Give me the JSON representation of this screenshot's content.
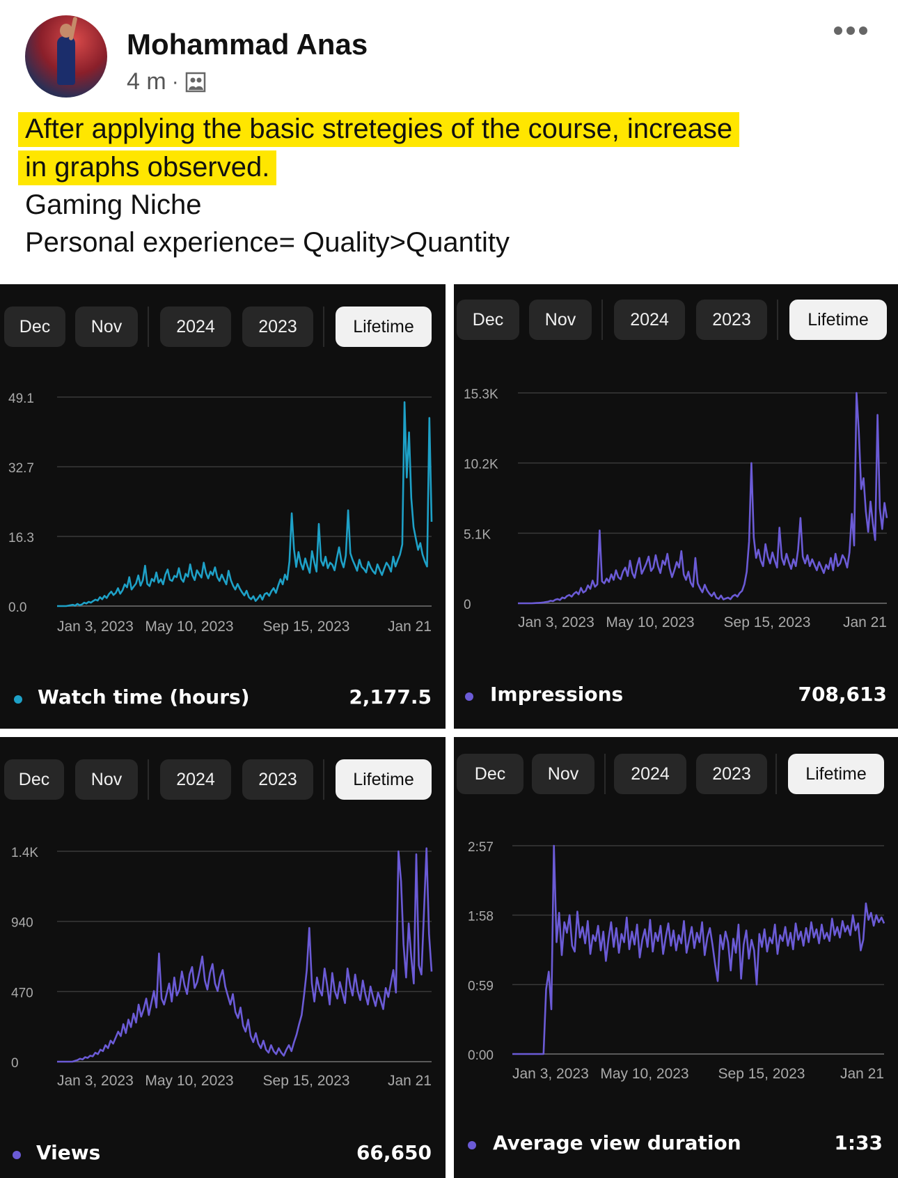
{
  "post": {
    "author": "Mohammad Anas",
    "time": "4 m",
    "meta_separator": "·",
    "audience_icon": "album-icon",
    "more_icon": "more-options-icon",
    "highlighted_lines": [
      "After applying the basic stretegies of the course, increase",
      "in graphs observed. "
    ],
    "lines": [
      "Gaming Niche",
      "Personal experience= Quality>Quantity"
    ],
    "highlight_color": "#ffe600"
  },
  "panels": [
    {
      "tabs": [
        "Dec",
        "Nov",
        "2024",
        "2023",
        "Lifetime"
      ],
      "active_tab": "Lifetime",
      "metric_label": "Watch time (hours)",
      "metric_value": "2,177.5",
      "accent": "#1ea1c7"
    },
    {
      "tabs": [
        "Dec",
        "Nov",
        "2024",
        "2023",
        "Lifetime"
      ],
      "active_tab": "Lifetime",
      "metric_label": "Impressions",
      "metric_value": "708,613",
      "accent": "#6b5bd6"
    },
    {
      "tabs": [
        "Dec",
        "Nov",
        "2024",
        "2023",
        "Lifetime"
      ],
      "active_tab": "Lifetime",
      "metric_label": "Views",
      "metric_value": "66,650",
      "accent": "#6b5bd6"
    },
    {
      "tabs": [
        "Dec",
        "Nov",
        "2024",
        "2023",
        "Lifetime"
      ],
      "active_tab": "Lifetime",
      "metric_label": "Average view duration",
      "metric_value": "1:33",
      "accent": "#6b5bd6"
    }
  ],
  "chart_data": [
    {
      "type": "line",
      "series": [
        {
          "name": "Watch time (hours)",
          "color": "#1ea1c7",
          "values": [
            0,
            0,
            0,
            0,
            0,
            0.1,
            0.2,
            0.3,
            0.1,
            0.5,
            0.2,
            0.4,
            0.8,
            0.6,
            1,
            0.8,
            1.2,
            1.5,
            1.3,
            2.1,
            1.6,
            2.4,
            1.9,
            2.8,
            3.4,
            2.6,
            3.1,
            4.2,
            2.9,
            3.7,
            5.1,
            4.4,
            6.8,
            3.9,
            4.6,
            5.3,
            7.2,
            4.8,
            6.1,
            9.5,
            5.2,
            4.7,
            6.4,
            5.8,
            7.9,
            5.5,
            6.3,
            5.1,
            7.4,
            8.6,
            6.2,
            5.9,
            7.1,
            6.8,
            8.9,
            6.4,
            5.7,
            7.6,
            6.9,
            9.8,
            7.2,
            6.1,
            8.4,
            7.5,
            6.7,
            10.2,
            7.8,
            6.5,
            8.1,
            7.3,
            9.1,
            6.8,
            5.9,
            7.4,
            6.2,
            5.1,
            8.3,
            6.1,
            4.8,
            3.9,
            5.2,
            4.1,
            3.2,
            2.5,
            3.6,
            2.1,
            1.6,
            2.3,
            1.2,
            1.8,
            2.6,
            1.5,
            2.8,
            3.1,
            2.4,
            3.5,
            4.2,
            3.1,
            4.8,
            6.3,
            5.1,
            7.4,
            6.2,
            10.5,
            21.8,
            13.4,
            9.2,
            12.7,
            10.1,
            8.6,
            11.2,
            9.4,
            7.8,
            12.9,
            10.3,
            8.1,
            19.3,
            10.7,
            9.5,
            11.6,
            8.9,
            10.2,
            9.7,
            8.4,
            11.3,
            13.8,
            10.6,
            9.1,
            11.9,
            22.5,
            12.4,
            10.8,
            9.6,
            8.3,
            10.9,
            9.2,
            8.7,
            7.9,
            10.4,
            9.1,
            8.2,
            7.6,
            9.8,
            8.5,
            7.3,
            8.8,
            10.2,
            9.4,
            8.1,
            11.6,
            9.3,
            10.8,
            12.1,
            14.5,
            47.9,
            30.2,
            40.8,
            25.4,
            18.6,
            15.9,
            13.2,
            14.8,
            12.1,
            10.5,
            9.3,
            44.2,
            19.8
          ]
        }
      ],
      "x_ticks": [
        "Jan 3, 2023",
        "May 10, 2023",
        "Sep 15, 2023",
        "Jan 21"
      ],
      "y_ticks": [
        "0.0",
        "16.3",
        "32.7",
        "49.1"
      ],
      "ylim": [
        0,
        49.1
      ],
      "grid": true
    },
    {
      "type": "line",
      "series": [
        {
          "name": "Impressions",
          "color": "#6b5bd6",
          "values": [
            0,
            0,
            0,
            0,
            0,
            0,
            0,
            10,
            20,
            30,
            40,
            60,
            90,
            120,
            180,
            150,
            260,
            310,
            240,
            420,
            360,
            520,
            610,
            480,
            700,
            830,
            650,
            1120,
            780,
            900,
            1300,
            1050,
            1650,
            1200,
            1380,
            5300,
            1600,
            1450,
            1800,
            1550,
            2100,
            1700,
            2400,
            1900,
            1750,
            2300,
            2600,
            1980,
            3100,
            2200,
            1850,
            2700,
            3300,
            2150,
            2500,
            2900,
            3400,
            2350,
            2600,
            3500,
            2700,
            2200,
            3100,
            2800,
            3600,
            2550,
            1900,
            2400,
            3000,
            2600,
            3800,
            2100,
            1700,
            2300,
            1500,
            1200,
            3300,
            1450,
            1100,
            800,
            1350,
            950,
            700,
            520,
            780,
            400,
            320,
            560,
            280,
            350,
            410,
            300,
            520,
            620,
            480,
            750,
            900,
            1400,
            2300,
            4500,
            10200,
            4800,
            3300,
            3900,
            3100,
            2700,
            4300,
            3400,
            2900,
            3700,
            3100,
            2600,
            5500,
            3300,
            2800,
            3600,
            3000,
            2500,
            3200,
            2700,
            3900,
            6200,
            3400,
            2900,
            3500,
            2700,
            3200,
            2800,
            2400,
            3000,
            2600,
            2200,
            2800,
            2500,
            3300,
            2400,
            3600,
            2700,
            2900,
            3500,
            3200,
            2600,
            3700,
            6500,
            4200,
            15300,
            12500,
            8300,
            9100,
            6700,
            5200,
            7400,
            5800,
            4600,
            13700,
            6900,
            5400,
            7300,
            6200
          ]
        }
      ],
      "x_ticks": [
        "Jan 3, 2023",
        "May 10, 2023",
        "Sep 15, 2023",
        "Jan 21"
      ],
      "y_ticks": [
        "0",
        "5.1K",
        "10.2K",
        "15.3K"
      ],
      "ylim": [
        0,
        15300
      ],
      "grid": true
    },
    {
      "type": "line",
      "series": [
        {
          "name": "Views",
          "color": "#6b5bd6",
          "values": [
            0,
            0,
            0,
            0,
            0,
            0,
            0,
            5,
            10,
            20,
            15,
            30,
            25,
            40,
            35,
            60,
            50,
            80,
            70,
            110,
            90,
            140,
            120,
            160,
            200,
            170,
            250,
            190,
            280,
            230,
            320,
            260,
            380,
            300,
            350,
            420,
            310,
            390,
            470,
            360,
            720,
            420,
            380,
            450,
            520,
            400,
            560,
            440,
            480,
            600,
            510,
            450,
            580,
            630,
            490,
            530,
            610,
            700,
            540,
            480,
            590,
            650,
            520,
            470,
            560,
            610,
            500,
            440,
            380,
            450,
            330,
            290,
            360,
            240,
            200,
            280,
            170,
            130,
            190,
            120,
            90,
            140,
            80,
            60,
            110,
            70,
            50,
            90,
            60,
            40,
            80,
            110,
            70,
            130,
            180,
            250,
            310,
            450,
            610,
            890,
            520,
            400,
            560,
            480,
            440,
            620,
            510,
            380,
            590,
            470,
            420,
            530,
            460,
            390,
            620,
            510,
            440,
            580,
            470,
            410,
            540,
            450,
            380,
            500,
            430,
            370,
            460,
            410,
            350,
            490,
            430,
            520,
            610,
            460,
            1400,
            1200,
            780,
            560,
            920,
            700,
            520,
            1380,
            640,
            580,
            990,
            1420,
            850,
            600
          ]
        }
      ],
      "x_ticks": [
        "Jan 3, 2023",
        "May 10, 2023",
        "Sep 15, 2023",
        "Jan 21"
      ],
      "y_ticks": [
        "0",
        "470",
        "940",
        "1.4K"
      ],
      "ylim": [
        0,
        1400
      ],
      "grid": true
    },
    {
      "type": "line",
      "series": [
        {
          "name": "Average view duration (seconds)",
          "color": "#6b5bd6",
          "values": [
            0,
            0,
            0,
            0,
            0,
            0,
            0,
            0,
            0,
            0,
            0,
            0,
            0,
            55,
            70,
            38,
            177,
            95,
            120,
            84,
            112,
            103,
            118,
            92,
            87,
            121,
            99,
            108,
            94,
            113,
            85,
            101,
            96,
            109,
            88,
            104,
            79,
            98,
            112,
            91,
            107,
            86,
            102,
            95,
            116,
            89,
            104,
            93,
            110,
            82,
            97,
            106,
            91,
            114,
            87,
            103,
            96,
            109,
            85,
            99,
            111,
            92,
            105,
            88,
            101,
            94,
            113,
            86,
            97,
            108,
            90,
            103,
            95,
            112,
            84,
            99,
            107,
            93,
            76,
            62,
            101,
            89,
            104,
            95,
            71,
            98,
            86,
            110,
            64,
            93,
            105,
            81,
            97,
            88,
            59,
            102,
            91,
            106,
            87,
            99,
            94,
            110,
            85,
            101,
            96,
            108,
            92,
            103,
            89,
            111,
            97,
            104,
            92,
            107,
            95,
            112,
            99,
            106,
            94,
            110,
            98,
            103,
            96,
            115,
            101,
            108,
            99,
            113,
            104,
            109,
            101,
            118,
            105,
            111,
            88,
            97,
            128,
            114,
            120,
            109,
            118,
            112,
            116,
            111
          ]
        }
      ],
      "x_ticks": [
        "Jan 3, 2023",
        "May 10, 2023",
        "Sep 15, 2023",
        "Jan 21"
      ],
      "y_ticks": [
        "0:00",
        "0:59",
        "1:58",
        "2:57"
      ],
      "ylim": [
        0,
        177
      ],
      "grid": true
    }
  ]
}
